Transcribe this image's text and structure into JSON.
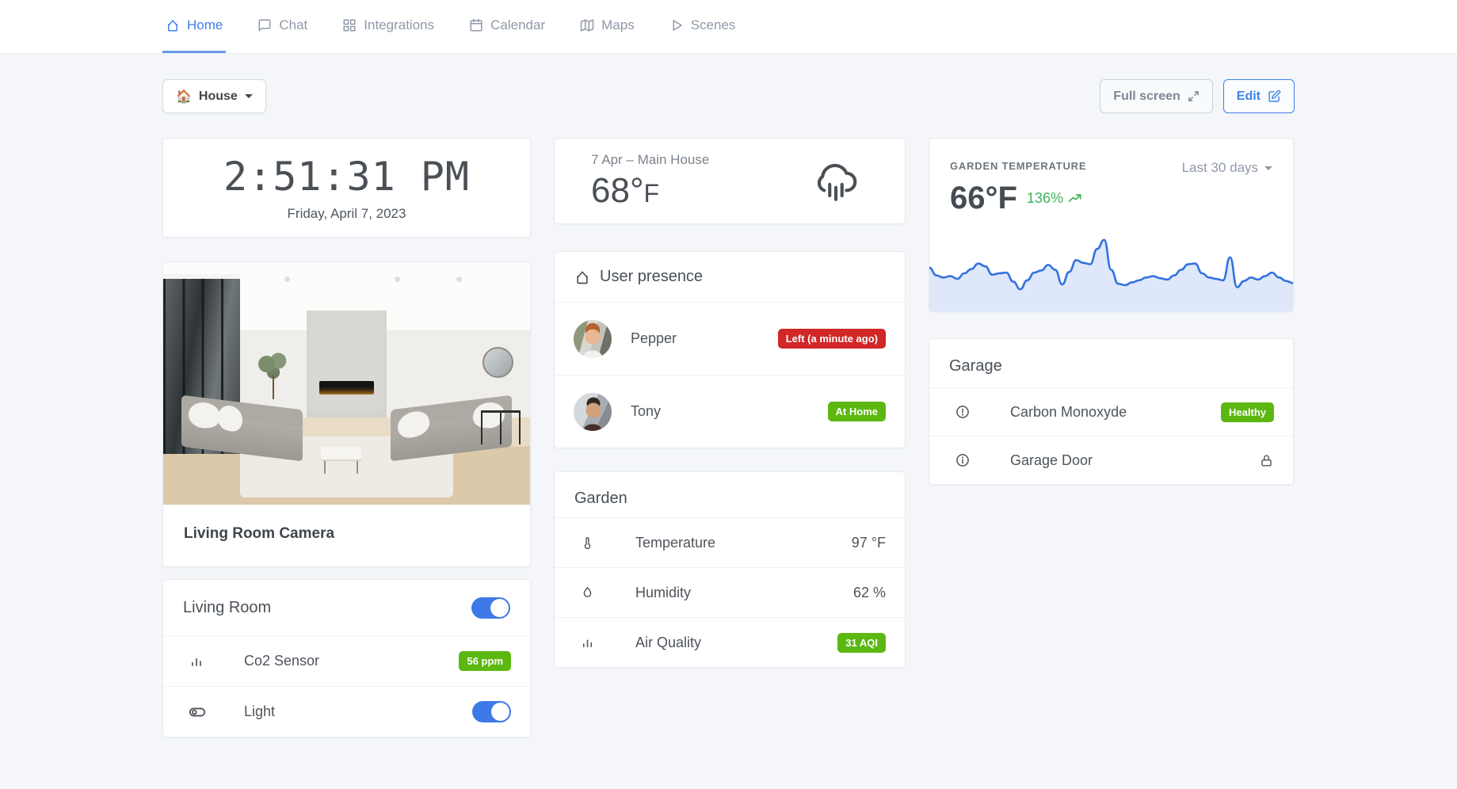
{
  "nav": {
    "items": [
      {
        "label": "Home",
        "icon": "home-icon",
        "active": true
      },
      {
        "label": "Chat",
        "icon": "chat-icon",
        "active": false
      },
      {
        "label": "Integrations",
        "icon": "grid-icon",
        "active": false
      },
      {
        "label": "Calendar",
        "icon": "calendar-icon",
        "active": false
      },
      {
        "label": "Maps",
        "icon": "map-icon",
        "active": false
      },
      {
        "label": "Scenes",
        "icon": "play-icon",
        "active": false
      }
    ]
  },
  "toolbar": {
    "house_emoji": "🏠",
    "house_label": "House",
    "fullscreen_label": "Full screen",
    "edit_label": "Edit"
  },
  "clock": {
    "time": "2:51:31 PM",
    "date": "Friday, April 7, 2023"
  },
  "weather": {
    "title": "7 Apr – Main House",
    "temp": "68°",
    "unit": "F",
    "icon": "cloud-rain-icon"
  },
  "garden_temperature": {
    "label": "GARDEN TEMPERATURE",
    "value": "66°F",
    "trend": "136%",
    "range": "Last 30 days"
  },
  "camera": {
    "title": "Living Room Camera"
  },
  "presence": {
    "title": "User presence",
    "users": [
      {
        "name": "Pepper",
        "status": "Left (a minute ago)",
        "status_type": "danger"
      },
      {
        "name": "Tony",
        "status": "At Home",
        "status_type": "success"
      }
    ]
  },
  "garden": {
    "title": "Garden",
    "rows": [
      {
        "icon": "thermometer-icon",
        "label": "Temperature",
        "value": "97 °F"
      },
      {
        "icon": "droplet-icon",
        "label": "Humidity",
        "value": "62 %"
      },
      {
        "icon": "bar-chart-icon",
        "label": "Air Quality",
        "badge": "31 AQI"
      }
    ]
  },
  "garage": {
    "title": "Garage",
    "rows": [
      {
        "icon": "alert-circle-icon",
        "label": "Carbon Monoxyde",
        "badge": "Healthy"
      },
      {
        "icon": "info-circle-icon",
        "label": "Garage Door",
        "value_icon": "lock-icon"
      }
    ]
  },
  "living_room": {
    "title": "Living Room",
    "power_on": true,
    "rows": [
      {
        "icon": "bar-chart-icon",
        "label": "Co2 Sensor",
        "badge": "56 ppm"
      },
      {
        "icon": "toggle-icon",
        "label": "Light",
        "toggle_on": true
      }
    ]
  },
  "colors": {
    "accent_blue": "#3f80ea",
    "toggle_blue": "#3e79e8",
    "badge_red": "#d12727",
    "badge_green": "#5cb811",
    "trend_green": "#3cb558",
    "chart_line": "#3472de",
    "page_bg": "#f4f6f9"
  },
  "chart_data": {
    "type": "area",
    "title": "Garden temperature sparkline (Last 30 days)",
    "legend": false,
    "axes_visible": false,
    "ylim": [
      0,
      100
    ],
    "values": [
      58,
      47,
      44,
      46,
      42,
      50,
      56,
      64,
      60,
      48,
      50,
      51,
      38,
      27,
      40,
      51,
      54,
      62,
      55,
      34,
      52,
      69,
      65,
      63,
      85,
      98,
      55,
      35,
      33,
      37,
      40,
      44,
      46,
      43,
      41,
      47,
      55,
      63,
      64,
      50,
      44,
      42,
      40,
      73,
      30,
      39,
      44,
      41,
      46,
      51,
      44,
      39,
      36
    ]
  }
}
